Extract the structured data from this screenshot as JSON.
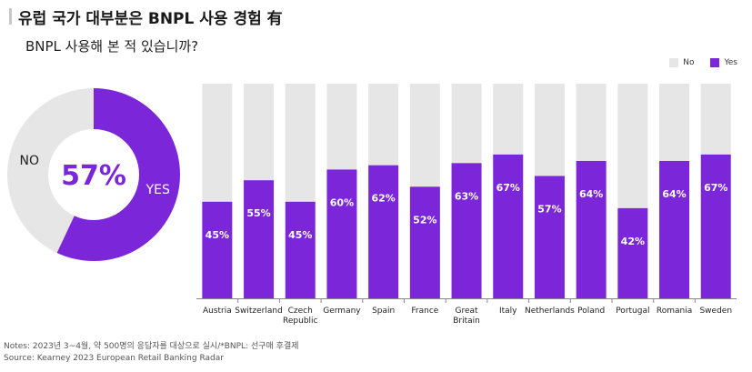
{
  "title": "유럽 국가 대부분은 BNPL 사용 경험 有",
  "subtitle": "BNPL 사용해 본 적 있습니까?",
  "colors": {
    "yes": "#7b27d9",
    "no": "#e6e6e6"
  },
  "notes": {
    "line1": "Notes: 2023년 3~4월, 약 500명의 응답자를 대상으로 실시/*BNPL: 선구매 후결제",
    "line2": "Source: Kearney 2023 European Retail Banking Radar"
  },
  "chart_data": [
    {
      "type": "pie",
      "center_label": "57%",
      "slices": [
        {
          "label": "YES",
          "value": 57
        },
        {
          "label": "NO",
          "value": 43
        }
      ]
    },
    {
      "type": "bar",
      "stacked": true,
      "legend": [
        "No",
        "Yes"
      ],
      "legend_position": "top-right",
      "ylim": [
        0,
        100
      ],
      "grid": false,
      "categories": [
        [
          "Austria"
        ],
        [
          "Switzerland"
        ],
        [
          "Czech",
          "Republic"
        ],
        [
          "Germany"
        ],
        [
          "Spain"
        ],
        [
          "France"
        ],
        [
          "Great",
          "Britain"
        ],
        [
          "Italy"
        ],
        [
          "Netherlands"
        ],
        [
          "Poland"
        ],
        [
          "Portugal"
        ],
        [
          "Romania"
        ],
        [
          "Sweden"
        ]
      ],
      "series": [
        {
          "name": "Yes",
          "values": [
            45,
            55,
            45,
            60,
            62,
            52,
            63,
            67,
            57,
            64,
            42,
            64,
            67
          ]
        },
        {
          "name": "No",
          "values": [
            55,
            45,
            55,
            40,
            38,
            48,
            37,
            33,
            43,
            36,
            58,
            36,
            33
          ]
        }
      ],
      "data_labels": [
        "45%",
        "55%",
        "45%",
        "60%",
        "62%",
        "52%",
        "63%",
        "67%",
        "57%",
        "64%",
        "42%",
        "64%",
        "67%"
      ]
    }
  ]
}
